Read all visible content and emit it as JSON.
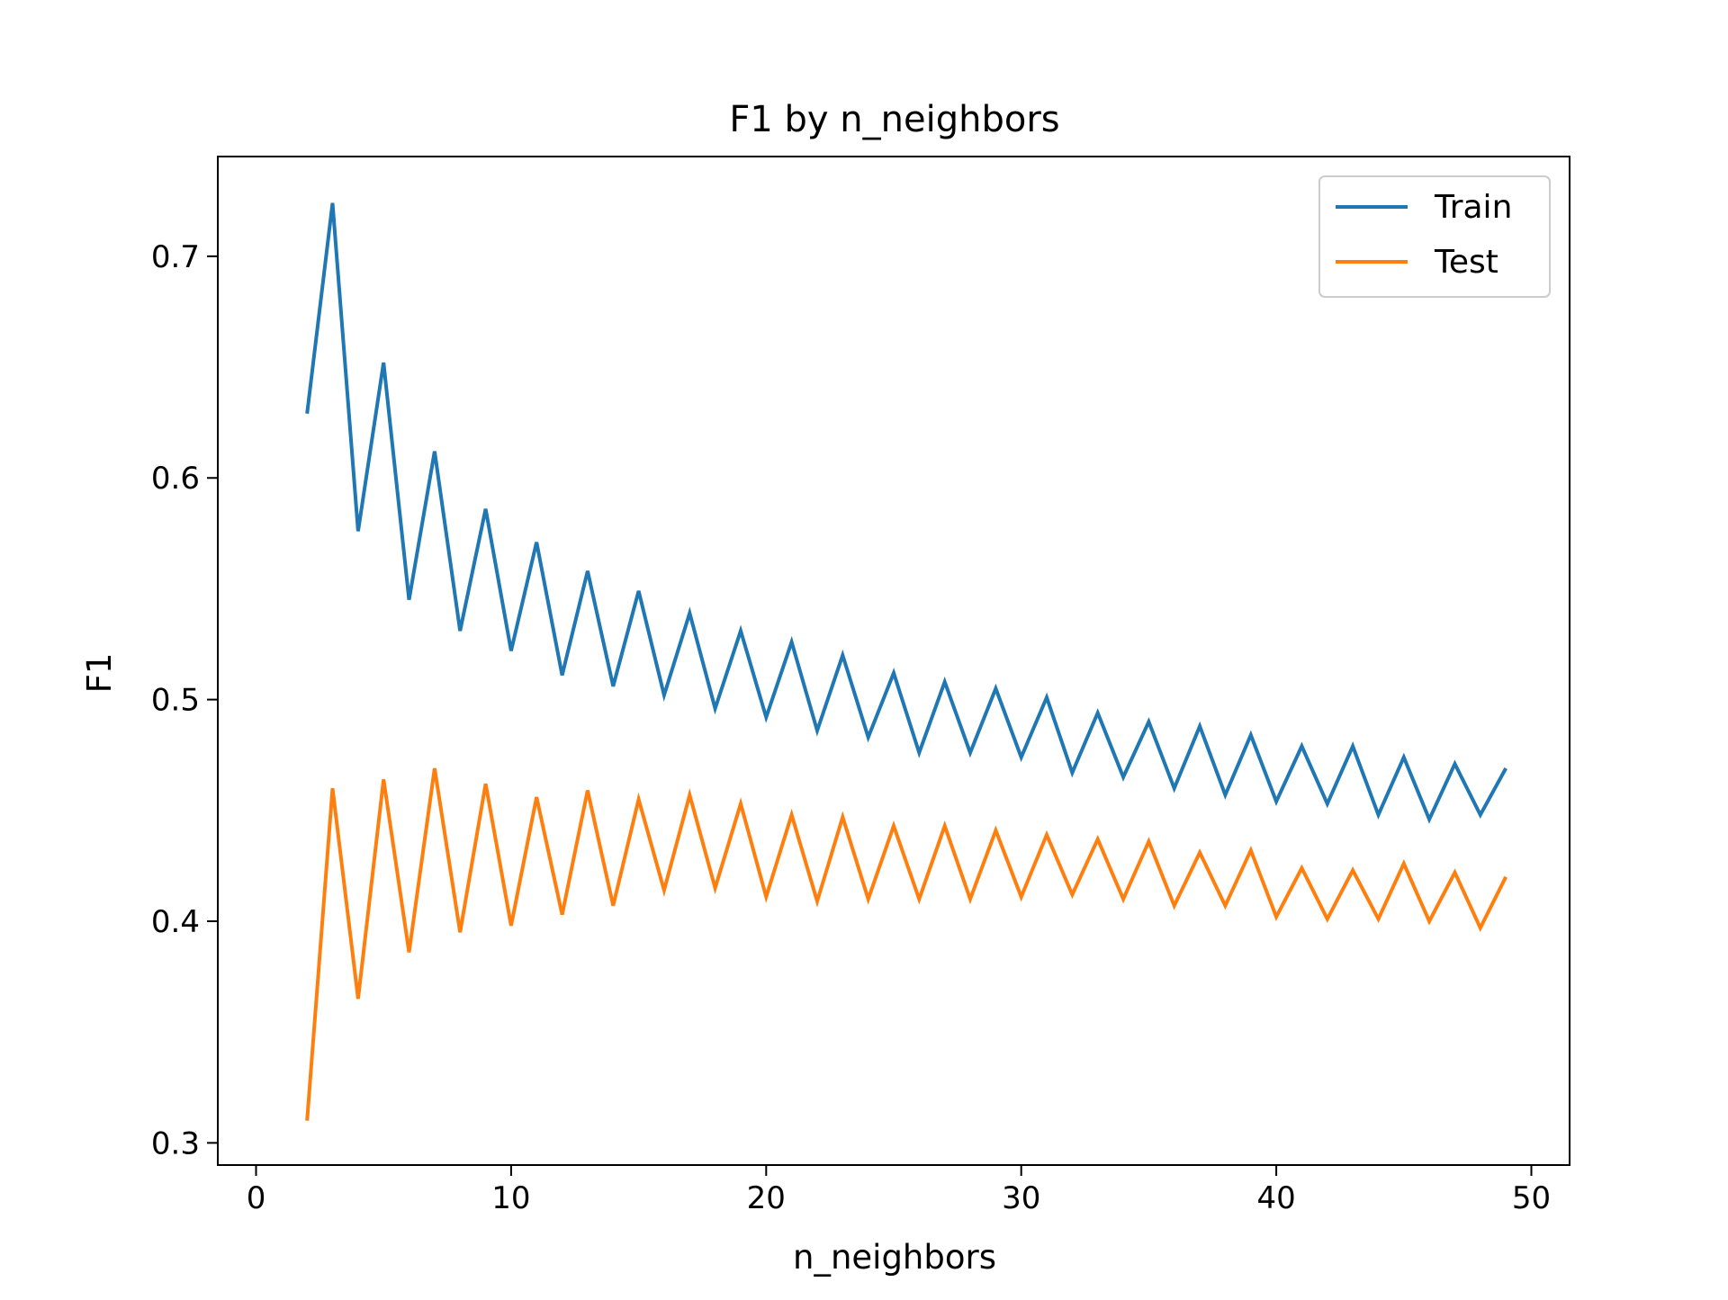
{
  "chart_data": {
    "type": "line",
    "title": "F1 by n_neighbors",
    "xlabel": "n_neighbors",
    "ylabel": "F1",
    "xlim": [
      -1.5,
      51.5
    ],
    "ylim": [
      0.29,
      0.745
    ],
    "xticks": [
      0,
      10,
      20,
      30,
      40,
      50
    ],
    "yticks": [
      0.3,
      0.4,
      0.5,
      0.6,
      0.7
    ],
    "legend_position": "top-right",
    "grid": false,
    "x": [
      2,
      3,
      4,
      5,
      6,
      7,
      8,
      9,
      10,
      11,
      12,
      13,
      14,
      15,
      16,
      17,
      18,
      19,
      20,
      21,
      22,
      23,
      24,
      25,
      26,
      27,
      28,
      29,
      30,
      31,
      32,
      33,
      34,
      35,
      36,
      37,
      38,
      39,
      40,
      41,
      42,
      43,
      44,
      45,
      46,
      47,
      48,
      49
    ],
    "series": [
      {
        "name": "Train",
        "color": "#1f77b4",
        "values": [
          0.629,
          0.724,
          0.576,
          0.652,
          0.545,
          0.612,
          0.531,
          0.586,
          0.522,
          0.571,
          0.511,
          0.558,
          0.506,
          0.549,
          0.502,
          0.539,
          0.496,
          0.531,
          0.492,
          0.526,
          0.486,
          0.52,
          0.483,
          0.512,
          0.476,
          0.508,
          0.476,
          0.505,
          0.474,
          0.501,
          0.467,
          0.494,
          0.465,
          0.49,
          0.46,
          0.488,
          0.457,
          0.484,
          0.454,
          0.479,
          0.453,
          0.479,
          0.448,
          0.474,
          0.446,
          0.471,
          0.448,
          0.469
        ]
      },
      {
        "name": "Test",
        "color": "#ff7f0e",
        "values": [
          0.31,
          0.46,
          0.365,
          0.464,
          0.386,
          0.469,
          0.395,
          0.462,
          0.398,
          0.456,
          0.403,
          0.459,
          0.407,
          0.455,
          0.414,
          0.457,
          0.415,
          0.453,
          0.411,
          0.448,
          0.409,
          0.447,
          0.41,
          0.443,
          0.41,
          0.443,
          0.41,
          0.441,
          0.411,
          0.439,
          0.412,
          0.437,
          0.41,
          0.436,
          0.407,
          0.431,
          0.407,
          0.432,
          0.402,
          0.424,
          0.401,
          0.423,
          0.401,
          0.426,
          0.4,
          0.422,
          0.397,
          0.42
        ]
      }
    ]
  }
}
